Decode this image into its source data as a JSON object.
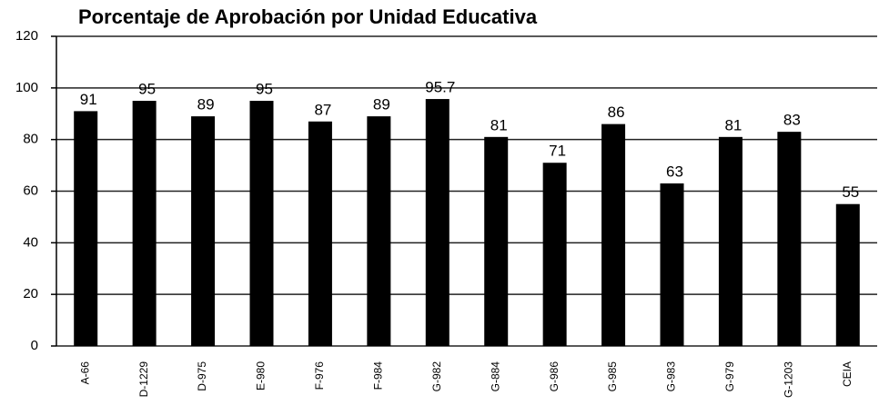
{
  "chart_data": {
    "type": "bar",
    "title": "Porcentaje de Aprobación por Unidad Educativa",
    "categories": [
      "A-66",
      "D-1229",
      "D-975",
      "E-980",
      "F-976",
      "F-984",
      "G-982",
      "G-884",
      "G-986",
      "G-985",
      "G-983",
      "G-979",
      "G-1203",
      "CEIA"
    ],
    "values": [
      91,
      95,
      89,
      95,
      87,
      89,
      95.7,
      81,
      71,
      86,
      63,
      81,
      83,
      55
    ],
    "color": "#000000",
    "ylim": [
      0,
      120
    ],
    "yticks": [
      0,
      20,
      40,
      60,
      80,
      100,
      120
    ],
    "grid": true
  }
}
